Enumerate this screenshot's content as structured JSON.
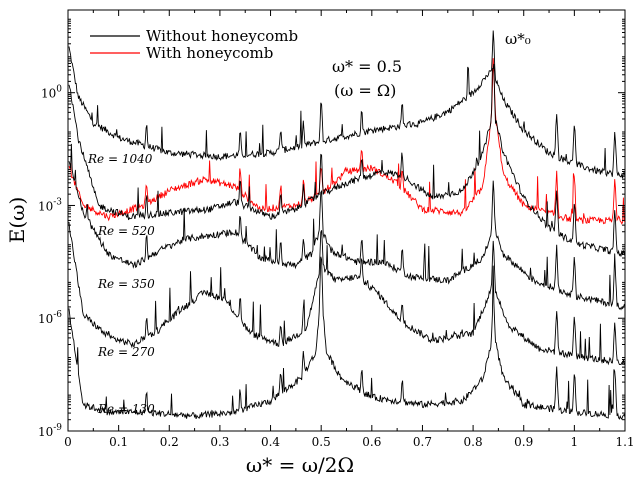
{
  "chart_data": {
    "type": "line",
    "xlabel": "ω* = ω/2Ω",
    "ylabel": "E(ω)",
    "xlim": [
      0,
      1.1
    ],
    "ylim_log10": [
      -9,
      2.2
    ],
    "y_scale": "log",
    "x_ticks": [
      "0",
      "0.1",
      "0.2",
      "0.3",
      "0.4",
      "0.5",
      "0.6",
      "0.7",
      "0.8",
      "0.9",
      "1",
      "1.1"
    ],
    "y_ticks": [
      {
        "base": "10",
        "exp": "0",
        "log10": 0
      },
      {
        "base": "10",
        "exp": "-3",
        "log10": -3
      },
      {
        "base": "10",
        "exp": "-6",
        "log10": -6
      },
      {
        "base": "10",
        "exp": "-9",
        "log10": -9
      }
    ],
    "legend_position": "top-left",
    "legend": [
      {
        "label": "Without honeycomb",
        "color": "#000000"
      },
      {
        "label": "With honeycomb",
        "color": "#ff0000"
      }
    ],
    "annotations": {
      "omega_half": "ω* = 0.5",
      "omega_equal": "(ω = Ω)",
      "omega0": "ω*₀"
    },
    "peaks": {
      "common": [
        0.5,
        0.84,
        0.965,
        1.0,
        1.08
      ],
      "minor": [
        0.155,
        0.34,
        0.42,
        0.465,
        0.58,
        0.66
      ]
    },
    "series": [
      {
        "name": "Without honeycomb",
        "label": "Re = 1040",
        "color": "#000000",
        "points": [
          [
            0.002,
            1.2
          ],
          [
            0.02,
            -0.1
          ],
          [
            0.05,
            -0.8
          ],
          [
            0.1,
            -1.2
          ],
          [
            0.2,
            -1.6
          ],
          [
            0.3,
            -1.7
          ],
          [
            0.4,
            -1.6
          ],
          [
            0.5,
            -1.3
          ],
          [
            0.6,
            -1.0
          ],
          [
            0.7,
            -0.8
          ],
          [
            0.75,
            -0.5
          ],
          [
            0.8,
            0.0
          ],
          [
            0.83,
            0.5
          ],
          [
            0.84,
            0.5
          ],
          [
            0.86,
            -0.2
          ],
          [
            0.9,
            -1.0
          ],
          [
            0.95,
            -1.6
          ],
          [
            1.0,
            -1.9
          ],
          [
            1.05,
            -2.1
          ],
          [
            1.1,
            -2.2
          ]
        ]
      },
      {
        "name": "With honeycomb",
        "label": "Re = 520",
        "color": "#ff0000",
        "points": [
          [
            0.002,
            -2.0
          ],
          [
            0.03,
            -3.0
          ],
          [
            0.08,
            -3.3
          ],
          [
            0.15,
            -3.0
          ],
          [
            0.2,
            -2.6
          ],
          [
            0.27,
            -2.3
          ],
          [
            0.33,
            -2.5
          ],
          [
            0.38,
            -3.1
          ],
          [
            0.45,
            -3.0
          ],
          [
            0.5,
            -2.7
          ],
          [
            0.55,
            -2.1
          ],
          [
            0.6,
            -2.0
          ],
          [
            0.65,
            -2.4
          ],
          [
            0.7,
            -3.1
          ],
          [
            0.78,
            -3.2
          ],
          [
            0.82,
            -2.5
          ],
          [
            0.84,
            -0.2
          ],
          [
            0.86,
            -2.2
          ],
          [
            0.9,
            -3.0
          ],
          [
            1.0,
            -3.4
          ],
          [
            1.1,
            -3.4
          ]
        ]
      },
      {
        "name": "Without honeycomb",
        "label": "Re = 520",
        "color": "#000000",
        "points": [
          [
            0.002,
            0.3
          ],
          [
            0.02,
            -1.2
          ],
          [
            0.06,
            -3.0
          ],
          [
            0.12,
            -3.3
          ],
          [
            0.2,
            -3.2
          ],
          [
            0.28,
            -3.1
          ],
          [
            0.33,
            -2.9
          ],
          [
            0.4,
            -3.3
          ],
          [
            0.45,
            -3.1
          ],
          [
            0.5,
            -2.7
          ],
          [
            0.55,
            -2.4
          ],
          [
            0.62,
            -2.1
          ],
          [
            0.66,
            -2.2
          ],
          [
            0.72,
            -2.8
          ],
          [
            0.78,
            -2.6
          ],
          [
            0.82,
            -1.6
          ],
          [
            0.84,
            -0.5
          ],
          [
            0.86,
            -1.6
          ],
          [
            0.9,
            -2.8
          ],
          [
            0.95,
            -3.6
          ],
          [
            1.0,
            -4.0
          ],
          [
            1.1,
            -4.3
          ]
        ]
      },
      {
        "name": "Without honeycomb",
        "label": "Re = 350",
        "color": "#000000",
        "points": [
          [
            0.002,
            -1.8
          ],
          [
            0.03,
            -3.2
          ],
          [
            0.08,
            -4.3
          ],
          [
            0.13,
            -4.6
          ],
          [
            0.18,
            -4.2
          ],
          [
            0.23,
            -3.9
          ],
          [
            0.28,
            -3.8
          ],
          [
            0.33,
            -3.7
          ],
          [
            0.38,
            -4.4
          ],
          [
            0.45,
            -4.6
          ],
          [
            0.48,
            -4.3
          ],
          [
            0.5,
            -3.6
          ],
          [
            0.52,
            -4.2
          ],
          [
            0.57,
            -4.5
          ],
          [
            0.62,
            -4.5
          ],
          [
            0.68,
            -4.9
          ],
          [
            0.75,
            -5.0
          ],
          [
            0.82,
            -4.4
          ],
          [
            0.84,
            -3.5
          ],
          [
            0.86,
            -4.3
          ],
          [
            0.92,
            -5.0
          ],
          [
            1.0,
            -5.4
          ],
          [
            1.1,
            -5.7
          ]
        ]
      },
      {
        "name": "Without honeycomb",
        "label": "Re = 270",
        "color": "#000000",
        "points": [
          [
            0.002,
            -3.5
          ],
          [
            0.03,
            -5.9
          ],
          [
            0.08,
            -6.5
          ],
          [
            0.13,
            -6.7
          ],
          [
            0.18,
            -6.3
          ],
          [
            0.22,
            -5.8
          ],
          [
            0.27,
            -5.3
          ],
          [
            0.31,
            -5.5
          ],
          [
            0.36,
            -6.4
          ],
          [
            0.42,
            -6.7
          ],
          [
            0.47,
            -6.3
          ],
          [
            0.5,
            -4.6
          ],
          [
            0.53,
            -5.0
          ],
          [
            0.57,
            -4.9
          ],
          [
            0.61,
            -5.3
          ],
          [
            0.66,
            -6.1
          ],
          [
            0.72,
            -6.6
          ],
          [
            0.8,
            -6.4
          ],
          [
            0.84,
            -5.1
          ],
          [
            0.87,
            -6.2
          ],
          [
            0.93,
            -6.8
          ],
          [
            1.0,
            -7.0
          ],
          [
            1.1,
            -7.2
          ]
        ]
      },
      {
        "name": "Without honeycomb",
        "label": "Re = 130",
        "color": "#000000",
        "points": [
          [
            0.002,
            -5.8
          ],
          [
            0.03,
            -8.3
          ],
          [
            0.08,
            -8.5
          ],
          [
            0.15,
            -8.5
          ],
          [
            0.25,
            -8.6
          ],
          [
            0.33,
            -8.5
          ],
          [
            0.4,
            -8.2
          ],
          [
            0.46,
            -7.6
          ],
          [
            0.49,
            -6.9
          ],
          [
            0.5,
            -5.2
          ],
          [
            0.51,
            -6.9
          ],
          [
            0.54,
            -7.6
          ],
          [
            0.6,
            -8.1
          ],
          [
            0.7,
            -8.3
          ],
          [
            0.78,
            -8.2
          ],
          [
            0.82,
            -7.6
          ],
          [
            0.84,
            -6.4
          ],
          [
            0.86,
            -7.6
          ],
          [
            0.9,
            -8.3
          ],
          [
            1.0,
            -8.5
          ],
          [
            1.1,
            -8.6
          ]
        ]
      }
    ]
  }
}
